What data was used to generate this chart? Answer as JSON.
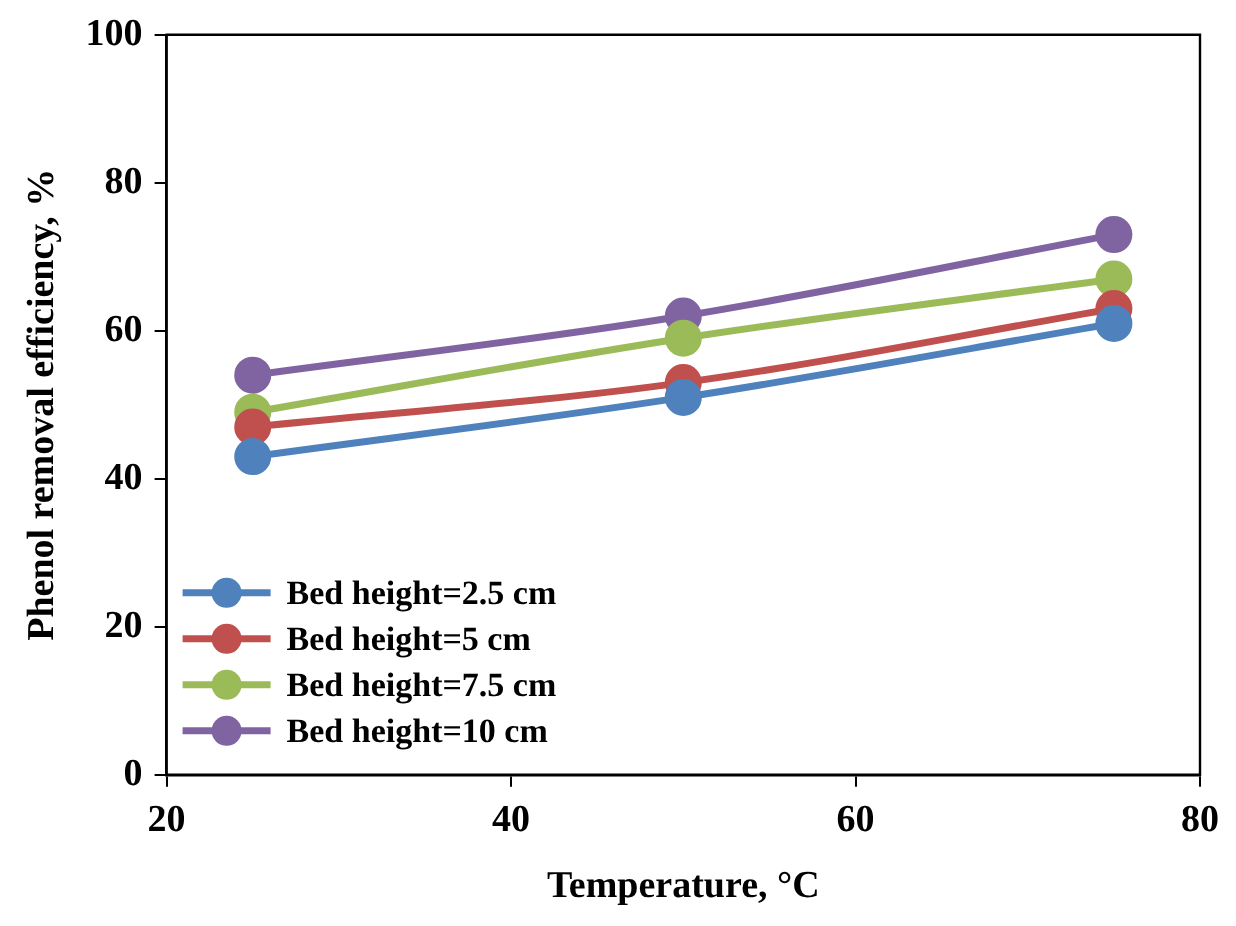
{
  "chart_data": {
    "type": "line",
    "xlabel": "Temperature, °C",
    "ylabel": "Phenol removal efficiency, %",
    "x": [
      25,
      50,
      75
    ],
    "series": [
      {
        "name": "Bed height=2.5 cm",
        "color": "#4f81bd",
        "values": [
          43,
          51,
          61
        ]
      },
      {
        "name": "Bed height=5 cm",
        "color": "#c0504d",
        "values": [
          47,
          53,
          63
        ]
      },
      {
        "name": "Bed height=7.5 cm",
        "color": "#9bbb59",
        "values": [
          49,
          59,
          67
        ]
      },
      {
        "name": "Bed height=10 cm",
        "color": "#8064a2",
        "values": [
          54,
          62,
          73
        ]
      }
    ],
    "xlim": [
      20,
      80
    ],
    "xticks": [
      20,
      40,
      60,
      80
    ],
    "ylim": [
      0,
      100
    ],
    "yticks": [
      0,
      20,
      40,
      60,
      80,
      100
    ],
    "grid": false,
    "legend": "bottom left",
    "marker": "circle",
    "line_style": "solid"
  }
}
